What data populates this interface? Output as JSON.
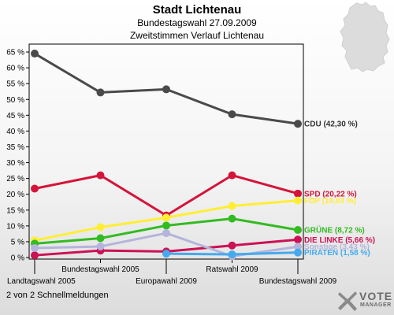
{
  "header": {
    "title": "Stadt Lichtenau",
    "subtitle": "Bundestagswahl 27.09.2009",
    "subtitle2": "Zweitstimmen Verlauf Lichtenau"
  },
  "footer": {
    "note": "2 von 2 Schnellmeldungen",
    "logo_line1": "VOTE",
    "logo_line2": "MANAGER"
  },
  "chart_data": {
    "type": "line",
    "categories": [
      "Landtagswahl 2005",
      "Bundestagswahl 2005",
      "Europawahl 2009",
      "Ratswahl 2009",
      "Bundestagswahl 2009"
    ],
    "ylim": [
      0,
      67
    ],
    "yticks": [
      0,
      5,
      10,
      15,
      20,
      25,
      30,
      35,
      40,
      45,
      50,
      55,
      60,
      65
    ],
    "ytick_suffix": " %",
    "grid": false,
    "series": [
      {
        "name": "CDU",
        "label": "CDU (42,30 %)",
        "color": "#4a4a4a",
        "label_color": "#333333",
        "values": [
          64.5,
          52.2,
          53.2,
          45.3,
          42.3
        ]
      },
      {
        "name": "SPD",
        "label": "SPD (20,22 %)",
        "color": "#d4143a",
        "label_color": "#d4143a",
        "values": [
          21.8,
          26.0,
          13.3,
          26.0,
          20.22
        ]
      },
      {
        "name": "FDP",
        "label": "FDP (18,03 %)",
        "color": "#ffee33",
        "label_color": "#ffee33",
        "values": [
          5.4,
          9.6,
          12.6,
          16.3,
          18.03
        ]
      },
      {
        "name": "GRÜNE",
        "label": "GRÜNE (8,72 %)",
        "color": "#33bb22",
        "label_color": "#33bb22",
        "values": [
          4.4,
          6.1,
          10.1,
          12.3,
          8.72
        ]
      },
      {
        "name": "DIE LINKE",
        "label": "DIE LINKE (5,66 %)",
        "color": "#cc1155",
        "label_color": "#cc1155",
        "values": [
          0.7,
          2.2,
          1.9,
          3.8,
          5.66
        ]
      },
      {
        "name": "Sonstige",
        "label": "Sonstige (3,43 %)",
        "color": "#b4b4dc",
        "label_color": "#b4b4dc",
        "values": [
          3.0,
          3.5,
          7.7,
          0.4,
          3.43
        ]
      },
      {
        "name": "PIRATEN",
        "label": "PIRATEN (1,58 %)",
        "color": "#44aaee",
        "label_color": "#44aaee",
        "values": [
          null,
          null,
          1.2,
          1.0,
          1.58
        ]
      }
    ]
  }
}
